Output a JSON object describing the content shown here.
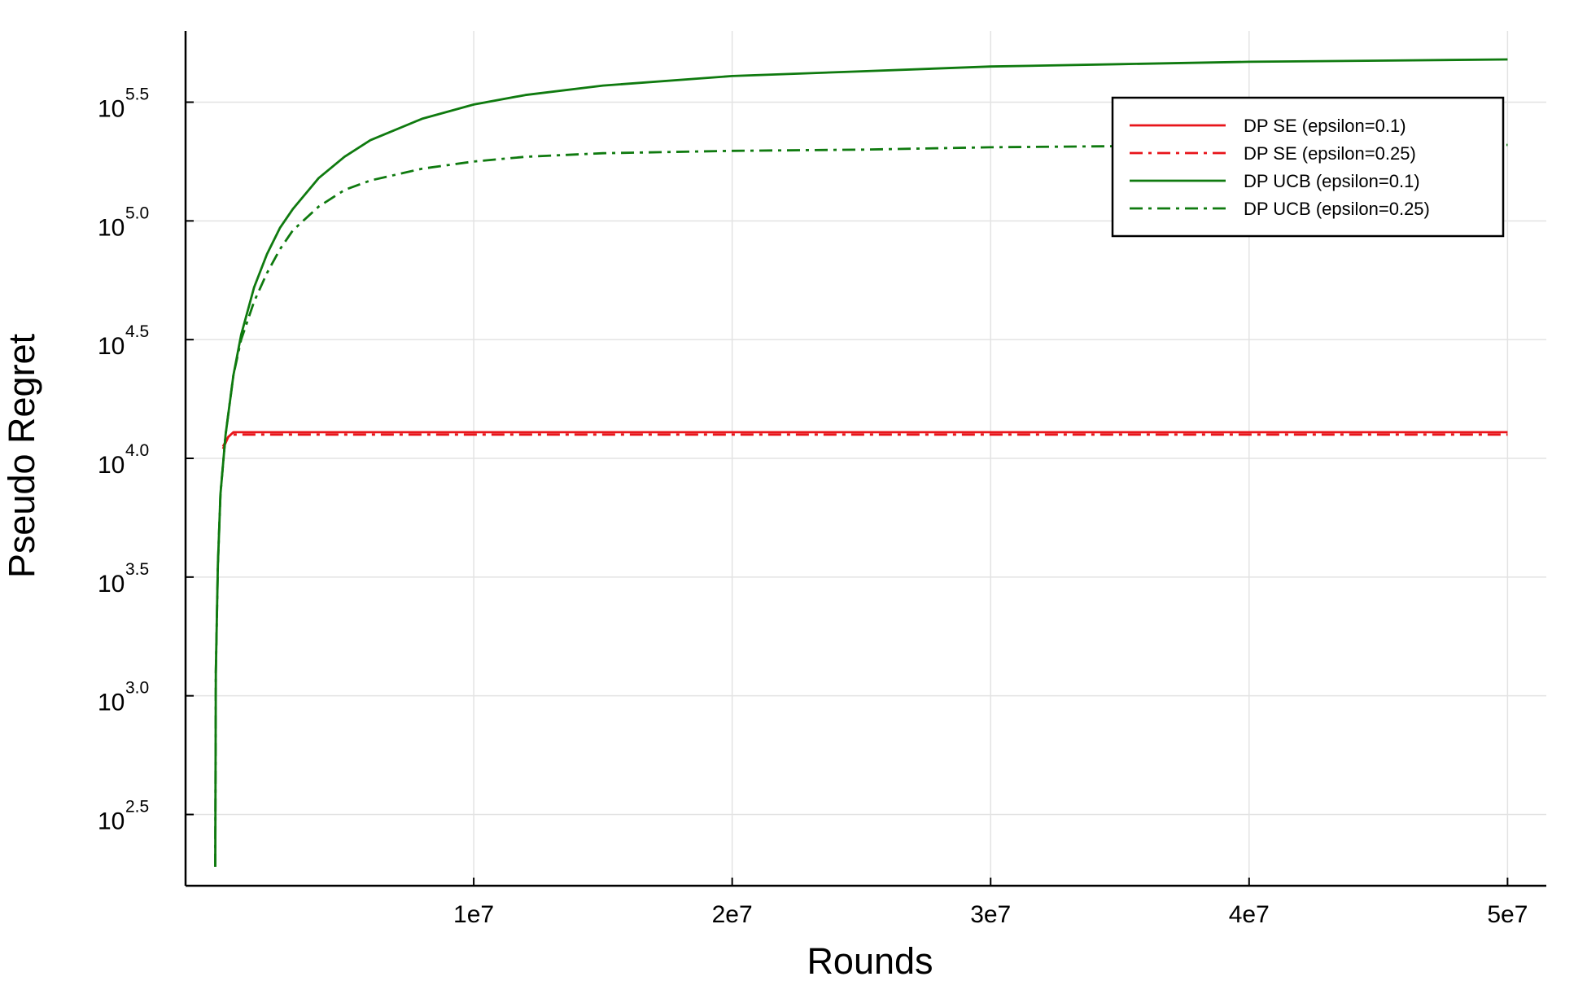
{
  "chart_data": {
    "type": "line",
    "title": "",
    "xlabel": "Rounds",
    "ylabel": "Pseudo Regret",
    "x_scale": "linear",
    "y_scale": "log10",
    "xlim": [
      -1150000,
      51500000
    ],
    "ylim_log10": [
      2.2,
      5.8
    ],
    "grid": true,
    "legend_position": "top-right",
    "x_ticks": [
      {
        "value": 10000000,
        "label": "1e7"
      },
      {
        "value": 20000000,
        "label": "2e7"
      },
      {
        "value": 30000000,
        "label": "3e7"
      },
      {
        "value": 40000000,
        "label": "4e7"
      },
      {
        "value": 50000000,
        "label": "5e7"
      }
    ],
    "y_ticks": [
      {
        "log10_value": 2.5,
        "base": "10",
        "exp": "2.5"
      },
      {
        "log10_value": 3.0,
        "base": "10",
        "exp": "3.0"
      },
      {
        "log10_value": 3.5,
        "base": "10",
        "exp": "3.5"
      },
      {
        "log10_value": 4.0,
        "base": "10",
        "exp": "4.0"
      },
      {
        "log10_value": 4.5,
        "base": "10",
        "exp": "4.5"
      },
      {
        "log10_value": 5.0,
        "base": "10",
        "exp": "5.0"
      },
      {
        "log10_value": 5.5,
        "base": "10",
        "exp": "5.5"
      }
    ],
    "series": [
      {
        "name": "DP SE (epsilon=0.1)",
        "color": "#e8141a",
        "dash": "solid",
        "x": [
          300000,
          500000,
          700000,
          1000000,
          5000000,
          10000000,
          20000000,
          30000000,
          40000000,
          50000000
        ],
        "y_log10": [
          4.05,
          4.09,
          4.11,
          4.11,
          4.11,
          4.11,
          4.11,
          4.11,
          4.11,
          4.11
        ]
      },
      {
        "name": "DP SE (epsilon=0.25)",
        "color": "#e8141a",
        "dash": "dashdot",
        "x": [
          300000,
          500000,
          700000,
          1000000,
          5000000,
          10000000,
          20000000,
          30000000,
          40000000,
          50000000
        ],
        "y_log10": [
          4.04,
          4.09,
          4.1,
          4.1,
          4.1,
          4.1,
          4.1,
          4.1,
          4.1,
          4.1
        ]
      },
      {
        "name": "DP UCB (epsilon=0.1)",
        "color": "#0f7a0f",
        "dash": "solid",
        "x": [
          0,
          20000,
          100000,
          200000,
          400000,
          700000,
          1000000,
          1500000,
          2000000,
          2500000,
          3000000,
          4000000,
          5000000,
          6000000,
          8000000,
          10000000,
          12000000,
          15000000,
          20000000,
          25000000,
          30000000,
          35000000,
          40000000,
          45000000,
          50000000
        ],
        "y_log10": [
          2.28,
          3.1,
          3.55,
          3.85,
          4.1,
          4.35,
          4.52,
          4.72,
          4.86,
          4.97,
          5.05,
          5.18,
          5.27,
          5.34,
          5.43,
          5.49,
          5.53,
          5.57,
          5.61,
          5.63,
          5.65,
          5.66,
          5.67,
          5.675,
          5.68
        ]
      },
      {
        "name": "DP UCB (epsilon=0.25)",
        "color": "#0f7a0f",
        "dash": "dashdot",
        "x": [
          0,
          20000,
          100000,
          200000,
          400000,
          700000,
          1000000,
          1500000,
          2000000,
          2500000,
          3000000,
          4000000,
          5000000,
          6000000,
          8000000,
          10000000,
          12000000,
          15000000,
          20000000,
          25000000,
          30000000,
          35000000,
          40000000,
          45000000,
          50000000
        ],
        "y_log10": [
          2.28,
          3.1,
          3.55,
          3.85,
          4.1,
          4.35,
          4.5,
          4.66,
          4.78,
          4.88,
          4.96,
          5.06,
          5.13,
          5.17,
          5.22,
          5.25,
          5.27,
          5.285,
          5.295,
          5.3,
          5.31,
          5.315,
          5.32,
          5.32,
          5.32
        ]
      }
    ]
  }
}
